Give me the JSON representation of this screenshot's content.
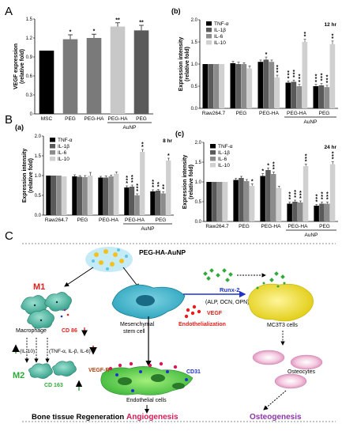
{
  "panel_labels": {
    "A": "A",
    "B": "B",
    "C": "C"
  },
  "colors": {
    "tnf": "#000000",
    "il1b": "#5a5a5a",
    "il6": "#8c8c8c",
    "il10": "#d0d0d0",
    "vegf": [
      "#000000",
      "#7a7a7a",
      "#7a7a7a",
      "#c8c8c8",
      "#5a5a5a"
    ],
    "red": "#e0201c",
    "green": "#2eaa3a",
    "blue": "#1f33c9",
    "pink": "#d21c56",
    "purple": "#8c35a8"
  },
  "chart_data": [
    {
      "id": "A",
      "type": "bar",
      "categories": [
        "MSC",
        "PEG",
        "PEG-HA",
        "PEG-HA",
        "PEG"
      ],
      "group_label": "AuNP",
      "values": [
        1.0,
        1.18,
        1.2,
        1.38,
        1.32
      ],
      "errors": [
        0.0,
        0.07,
        0.06,
        0.06,
        0.08
      ],
      "significance": [
        "",
        "*",
        "*",
        "**",
        "**"
      ],
      "ylabel": "VEGF expression\n(relative fold)",
      "ylim": [
        0,
        1.5
      ],
      "yticks": [
        "0",
        "0.3",
        "0.6",
        "0.9",
        "1.2",
        "1.5"
      ]
    },
    {
      "id": "b",
      "type": "bar",
      "sub_label": "(b)",
      "time": "12 hr",
      "categories": [
        "Raw264.7",
        "PEG",
        "PEG-HA",
        "PEG-HA",
        "PEG"
      ],
      "group_label": "AuNP",
      "series": [
        {
          "name": "TNF-α",
          "values": [
            1.0,
            1.02,
            1.05,
            0.58,
            0.5
          ],
          "errors": [
            0,
            0.04,
            0.04,
            0.04,
            0.04
          ],
          "significance": [
            "",
            "",
            "",
            "***",
            "***"
          ]
        },
        {
          "name": "IL-1β",
          "values": [
            1.0,
            1.0,
            1.1,
            0.6,
            0.52
          ],
          "errors": [
            0,
            0.04,
            0.06,
            0.04,
            0.04
          ],
          "significance": [
            "",
            "",
            "*",
            "***",
            "***"
          ]
        },
        {
          "name": "IL-6",
          "values": [
            1.0,
            1.0,
            1.05,
            0.5,
            0.48
          ],
          "errors": [
            0,
            0.03,
            0.04,
            0.04,
            0.04
          ],
          "significance": [
            "",
            "",
            "",
            "***",
            "***"
          ]
        },
        {
          "name": "IL-10",
          "values": [
            1.0,
            0.9,
            0.7,
            1.5,
            1.45
          ],
          "errors": [
            0,
            0.06,
            0.05,
            0.06,
            0.07
          ],
          "significance": [
            "",
            "",
            "***",
            "**",
            "**"
          ]
        }
      ],
      "ylabel": "Expression intensity\n(relative fold)",
      "ylim": [
        0,
        2.0
      ],
      "yticks": [
        "0.0",
        "0.5",
        "1.0",
        "1.5",
        "2.0"
      ]
    },
    {
      "id": "a",
      "type": "bar",
      "sub_label": "(a)",
      "time": "8 hr",
      "categories": [
        "Raw264.7",
        "PEG",
        "PEG-HA",
        "PEG-HA",
        "PEG"
      ],
      "group_label": "AuNP",
      "series": [
        {
          "name": "TNF-α",
          "values": [
            1.0,
            0.98,
            0.95,
            0.7,
            0.6
          ],
          "errors": [
            0,
            0.04,
            0.03,
            0.04,
            0.04
          ],
          "significance": [
            "",
            "",
            "",
            "***",
            "***"
          ]
        },
        {
          "name": "IL-1β",
          "values": [
            1.0,
            0.97,
            0.95,
            0.72,
            0.62
          ],
          "errors": [
            0,
            0.03,
            0.04,
            0.04,
            0.03
          ],
          "significance": [
            "",
            "",
            "",
            "***",
            "**"
          ]
        },
        {
          "name": "IL-6",
          "values": [
            1.0,
            0.96,
            0.98,
            0.5,
            0.55
          ],
          "errors": [
            0,
            0.04,
            0.03,
            0.04,
            0.04
          ],
          "significance": [
            "",
            "",
            "",
            "***",
            "**"
          ]
        },
        {
          "name": "IL-10",
          "values": [
            0.98,
            1.0,
            1.05,
            1.6,
            1.38
          ],
          "errors": [
            0,
            0.08,
            0.04,
            0.06,
            0.06
          ],
          "significance": [
            "",
            "",
            "",
            "**",
            "*"
          ]
        }
      ],
      "ylabel": "Expression intensity\n(relative fold)",
      "ylim": [
        0,
        2.0
      ],
      "yticks": [
        "0.0",
        "0.5",
        "1.0",
        "1.5",
        "2.0"
      ]
    },
    {
      "id": "c",
      "type": "bar",
      "sub_label": "(c)",
      "time": "24 hr",
      "categories": [
        "Raw264.7",
        "PEG",
        "PEG-HA",
        "PEG-HA",
        "PEG"
      ],
      "group_label": "AuNP",
      "series": [
        {
          "name": "TNF-α",
          "values": [
            1.0,
            1.05,
            1.15,
            0.45,
            0.4
          ],
          "errors": [
            0,
            0.04,
            0.06,
            0.04,
            0.03
          ],
          "significance": [
            "",
            "",
            "*",
            "***",
            "***"
          ]
        },
        {
          "name": "IL-1β",
          "values": [
            1.0,
            1.1,
            1.3,
            0.5,
            0.45
          ],
          "errors": [
            0,
            0.04,
            0.05,
            0.04,
            0.04
          ],
          "significance": [
            "",
            "",
            "*",
            "***",
            "***"
          ]
        },
        {
          "name": "IL-6",
          "values": [
            1.0,
            1.02,
            1.2,
            0.48,
            0.45
          ],
          "errors": [
            0,
            0.04,
            0.05,
            0.04,
            0.04
          ],
          "significance": [
            "",
            "",
            "***",
            "***",
            "***"
          ]
        },
        {
          "name": "IL-10",
          "values": [
            1.0,
            0.9,
            0.85,
            1.4,
            1.45
          ],
          "errors": [
            0,
            0.05,
            0.04,
            0.05,
            0.06
          ],
          "significance": [
            "",
            "*",
            "",
            "***",
            "***"
          ]
        }
      ],
      "ylabel": "Expression intensity\n(relative fold)",
      "ylim": [
        0,
        2.0
      ],
      "yticks": [
        "0.0",
        "0.5",
        "1.0",
        "1.5",
        "2.0"
      ]
    }
  ],
  "diagram": {
    "nanoparticle": "PEG-HA-AuNP",
    "m1": "M1",
    "macrophage": "Macrophage",
    "cd86": "CD 86",
    "il10": "(IL-10)",
    "tnf_group": "(TNF-α, IL-β, IL-6)",
    "m2": "M2",
    "cd163": "CD 163",
    "msc_line1": "Mesenchymal",
    "msc_line2": "stem cell",
    "runx": "Runx-2",
    "markers": "(ALP, OCN, OPN)",
    "mc3t3": "MC3T3 cells",
    "vegf": "VEGF",
    "endothelialization": "Endothelialization",
    "vegf_r": "VEGF-R",
    "cd31": "CD31",
    "endothelial": "Endothelial cells",
    "osteocytes": "Osteocytes",
    "bone": "Bone tissue Regeneration",
    "angiogenesis": "Angiogenesis",
    "osteogenesis": "Osteogenesis"
  }
}
